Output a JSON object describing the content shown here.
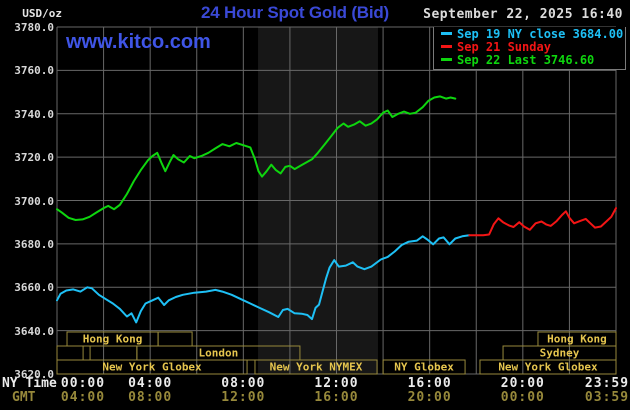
{
  "header": {
    "unit_label": "USD/oz",
    "title": "24 Hour Spot Gold (Bid)",
    "datetime": "September 22, 2025 16:40",
    "watermark": "www.kitco.com"
  },
  "axis_corner": {
    "ny_time_label": "NY Time",
    "gmt_label": "GMT"
  },
  "colors": {
    "background": "#000000",
    "title_blue": "#3a49d6",
    "watermark_blue": "#3f55e6",
    "grid": "#686868",
    "band": "#171717",
    "session_border": "#97893b",
    "session_text": "#e5c54e",
    "blue_series": "#1ec0f5",
    "red_series": "#f31515",
    "green_series": "#0ed60e",
    "axis_text": "#d8d8d8",
    "gmt_text": "#97893b"
  },
  "chart_data": {
    "type": "line",
    "title": "24 Hour Spot Gold (Bid)",
    "xlabel": "NY Time / GMT (hours)",
    "ylabel": "USD/oz",
    "x_range_hours": [
      0,
      24
    ],
    "ylim": [
      3620,
      3780
    ],
    "grid": true,
    "gridline_every_hours": 2,
    "y_axis": {
      "ticks": [
        3780,
        3760,
        3740,
        3720,
        3700,
        3680,
        3660,
        3640,
        3620
      ]
    },
    "x_axis": {
      "tick_hours": [
        0,
        4,
        8,
        12,
        16,
        20,
        24
      ],
      "ny_time_labels": [
        "00:00",
        "04:00",
        "08:00",
        "12:00",
        "16:00",
        "20:00",
        "23:59"
      ],
      "gmt_labels": [
        "04:00",
        "08:00",
        "12:00",
        "16:00",
        "20:00",
        "00:00",
        "03:59"
      ]
    },
    "legend": {
      "position": "top-right",
      "entries": [
        {
          "label": "Sep 19 NY close 3684.00",
          "color": "#1ec0f5"
        },
        {
          "label": "Sep 21 Sunday",
          "color": "#f31515"
        },
        {
          "label": "Sep 22 Last 3746.60",
          "color": "#0ed60e"
        }
      ]
    },
    "highlight_band_hours": [
      8.63,
      13.78
    ],
    "series": [
      {
        "name": "Sep 19 NY close",
        "color": "#1ec0f5",
        "close_value": 3684.0,
        "points": [
          [
            0.0,
            3654
          ],
          [
            0.15,
            3657
          ],
          [
            0.4,
            3658.5
          ],
          [
            0.7,
            3659
          ],
          [
            1.0,
            3658
          ],
          [
            1.3,
            3660
          ],
          [
            1.5,
            3659.5
          ],
          [
            1.8,
            3656.5
          ],
          [
            2.1,
            3654.5
          ],
          [
            2.4,
            3652.5
          ],
          [
            2.7,
            3650
          ],
          [
            3.0,
            3646.5
          ],
          [
            3.2,
            3648
          ],
          [
            3.4,
            3643.8
          ],
          [
            3.6,
            3649
          ],
          [
            3.8,
            3652.5
          ],
          [
            4.1,
            3654
          ],
          [
            4.35,
            3655.2
          ],
          [
            4.6,
            3651.8
          ],
          [
            4.8,
            3654
          ],
          [
            5.1,
            3655.5
          ],
          [
            5.4,
            3656.5
          ],
          [
            5.9,
            3657.5
          ],
          [
            6.4,
            3658
          ],
          [
            6.8,
            3658.8
          ],
          [
            7.1,
            3658
          ],
          [
            7.5,
            3656.5
          ],
          [
            7.9,
            3654.5
          ],
          [
            8.3,
            3652.5
          ],
          [
            8.7,
            3650.5
          ],
          [
            9.1,
            3648.5
          ],
          [
            9.5,
            3646.3
          ],
          [
            9.7,
            3649.5
          ],
          [
            9.9,
            3650
          ],
          [
            10.2,
            3648
          ],
          [
            10.5,
            3647.8
          ],
          [
            10.75,
            3647.2
          ],
          [
            10.95,
            3645.3
          ],
          [
            11.1,
            3650.5
          ],
          [
            11.25,
            3652
          ],
          [
            11.4,
            3658
          ],
          [
            11.55,
            3664
          ],
          [
            11.7,
            3669
          ],
          [
            11.9,
            3672.5
          ],
          [
            12.1,
            3669.5
          ],
          [
            12.4,
            3670
          ],
          [
            12.7,
            3671.5
          ],
          [
            12.9,
            3669.5
          ],
          [
            13.2,
            3668.3
          ],
          [
            13.5,
            3669.5
          ],
          [
            13.9,
            3672.8
          ],
          [
            14.2,
            3674
          ],
          [
            14.5,
            3676.5
          ],
          [
            14.8,
            3679.5
          ],
          [
            15.1,
            3681
          ],
          [
            15.45,
            3681.5
          ],
          [
            15.7,
            3683.5
          ],
          [
            15.9,
            3682
          ],
          [
            16.15,
            3679.8
          ],
          [
            16.4,
            3682.5
          ],
          [
            16.6,
            3683
          ],
          [
            16.85,
            3679.8
          ],
          [
            17.1,
            3682.5
          ],
          [
            17.4,
            3683.5
          ],
          [
            17.7,
            3684
          ]
        ]
      },
      {
        "name": "Sep 21 Sunday",
        "color": "#f31515",
        "points": [
          [
            17.7,
            3684
          ],
          [
            18.3,
            3684
          ],
          [
            18.55,
            3684.3
          ],
          [
            18.75,
            3689
          ],
          [
            18.95,
            3691.8
          ],
          [
            19.15,
            3690
          ],
          [
            19.4,
            3688.5
          ],
          [
            19.6,
            3687.8
          ],
          [
            19.85,
            3690
          ],
          [
            20.05,
            3688
          ],
          [
            20.3,
            3686.5
          ],
          [
            20.55,
            3689.5
          ],
          [
            20.8,
            3690.3
          ],
          [
            21.0,
            3689
          ],
          [
            21.2,
            3688.3
          ],
          [
            21.45,
            3690.5
          ],
          [
            21.7,
            3693.5
          ],
          [
            21.85,
            3695
          ],
          [
            22.0,
            3692
          ],
          [
            22.2,
            3689.5
          ],
          [
            22.45,
            3690.5
          ],
          [
            22.7,
            3691.5
          ],
          [
            22.9,
            3689.5
          ],
          [
            23.1,
            3687.5
          ],
          [
            23.35,
            3688
          ],
          [
            23.6,
            3690.5
          ],
          [
            23.8,
            3692.5
          ],
          [
            24.0,
            3696.5
          ]
        ]
      },
      {
        "name": "Sep 22 Last",
        "color": "#0ed60e",
        "last_value": 3746.6,
        "points": [
          [
            0.0,
            3696
          ],
          [
            0.2,
            3694.5
          ],
          [
            0.5,
            3692
          ],
          [
            0.8,
            3691
          ],
          [
            1.1,
            3691.3
          ],
          [
            1.4,
            3692.5
          ],
          [
            1.7,
            3694.5
          ],
          [
            2.0,
            3696.5
          ],
          [
            2.2,
            3697.5
          ],
          [
            2.45,
            3696
          ],
          [
            2.7,
            3698
          ],
          [
            3.0,
            3703
          ],
          [
            3.3,
            3709
          ],
          [
            3.6,
            3714
          ],
          [
            3.9,
            3718.5
          ],
          [
            4.1,
            3720.5
          ],
          [
            4.3,
            3722
          ],
          [
            4.5,
            3717
          ],
          [
            4.65,
            3713.5
          ],
          [
            4.85,
            3718
          ],
          [
            5.0,
            3721
          ],
          [
            5.2,
            3719
          ],
          [
            5.45,
            3717.5
          ],
          [
            5.7,
            3720.5
          ],
          [
            5.9,
            3719.5
          ],
          [
            6.2,
            3720.5
          ],
          [
            6.5,
            3722
          ],
          [
            6.8,
            3724
          ],
          [
            7.1,
            3726
          ],
          [
            7.4,
            3725
          ],
          [
            7.7,
            3726.5
          ],
          [
            8.0,
            3725.5
          ],
          [
            8.3,
            3724.5
          ],
          [
            8.5,
            3719
          ],
          [
            8.65,
            3713.5
          ],
          [
            8.8,
            3711
          ],
          [
            9.0,
            3713.5
          ],
          [
            9.2,
            3716.5
          ],
          [
            9.4,
            3714
          ],
          [
            9.6,
            3712.5
          ],
          [
            9.8,
            3715.5
          ],
          [
            10.0,
            3716
          ],
          [
            10.2,
            3714.5
          ],
          [
            10.45,
            3716
          ],
          [
            10.7,
            3717.5
          ],
          [
            10.95,
            3719
          ],
          [
            11.2,
            3722
          ],
          [
            11.5,
            3726
          ],
          [
            11.8,
            3730
          ],
          [
            12.05,
            3733.5
          ],
          [
            12.3,
            3735.5
          ],
          [
            12.5,
            3734
          ],
          [
            12.75,
            3735
          ],
          [
            13.0,
            3736.5
          ],
          [
            13.25,
            3734.5
          ],
          [
            13.5,
            3735.5
          ],
          [
            13.75,
            3737.5
          ],
          [
            14.0,
            3740.5
          ],
          [
            14.2,
            3741.5
          ],
          [
            14.4,
            3738.5
          ],
          [
            14.65,
            3740
          ],
          [
            14.9,
            3741
          ],
          [
            15.15,
            3740
          ],
          [
            15.4,
            3740.5
          ],
          [
            15.7,
            3743
          ],
          [
            15.95,
            3746
          ],
          [
            16.2,
            3747.5
          ],
          [
            16.45,
            3748
          ],
          [
            16.7,
            3747
          ],
          [
            16.9,
            3747.5
          ],
          [
            17.1,
            3747
          ]
        ]
      }
    ],
    "sessions": [
      {
        "row": 1,
        "label": "Hong Kong",
        "start": 0.43,
        "end": 4.34
      },
      {
        "row": 1,
        "label": "",
        "start": 4.34,
        "end": 5.8
      },
      {
        "row": 1,
        "label": "Hong Kong",
        "start": 20.65,
        "end": 24
      },
      {
        "row": 2,
        "label": "",
        "start": 0,
        "end": 1.12
      },
      {
        "row": 2,
        "label": "",
        "start": 1.42,
        "end": 3.43
      },
      {
        "row": 2,
        "label": "London",
        "start": 3.43,
        "end": 10.43
      },
      {
        "row": 2,
        "label": "Sydney",
        "start": 19.15,
        "end": 24
      },
      {
        "row": 3,
        "label": "New York Globex",
        "start": 0,
        "end": 8.16
      },
      {
        "row": 3,
        "label": "New York NYMEX",
        "start": 8.5,
        "end": 13.74
      },
      {
        "row": 3,
        "label": "NY Globex",
        "start": 14.0,
        "end": 17.52
      },
      {
        "row": 3,
        "label": "New York Globex",
        "start": 18.16,
        "end": 24
      }
    ]
  }
}
